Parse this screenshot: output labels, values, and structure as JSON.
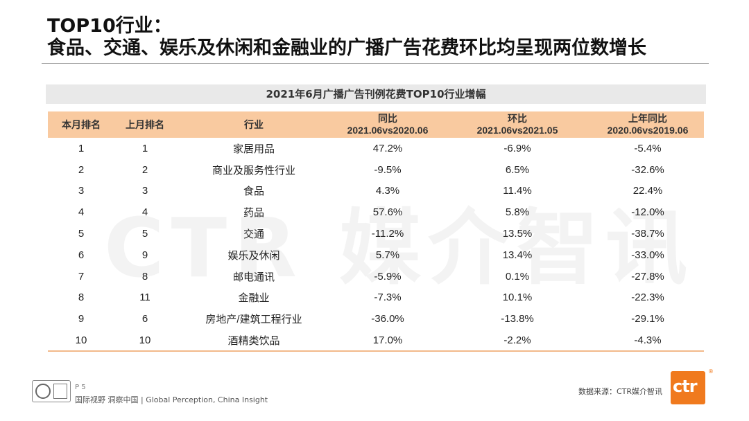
{
  "watermark": "CTR 媒介智讯",
  "title": {
    "line1": "TOP10行业：",
    "line2": "食品、交通、娱乐及休闲和金融业的广播广告花费环比均呈现两位数增长"
  },
  "table": {
    "title": "2021年6月广播广告刊例花费TOP10行业增幅",
    "headers": [
      {
        "line1": "本月排名",
        "line2": ""
      },
      {
        "line1": "上月排名",
        "line2": ""
      },
      {
        "line1": "行业",
        "line2": ""
      },
      {
        "line1": "同比",
        "line2": "2021.06vs2020.06"
      },
      {
        "line1": "环比",
        "line2": "2021.06vs2021.05"
      },
      {
        "line1": "上年同比",
        "line2": "2020.06vs2019.06"
      }
    ],
    "rows": [
      [
        "1",
        "1",
        "家居用品",
        "47.2%",
        "-6.9%",
        "-5.4%"
      ],
      [
        "2",
        "2",
        "商业及服务性行业",
        "-9.5%",
        "6.5%",
        "-32.6%"
      ],
      [
        "3",
        "3",
        "食品",
        "4.3%",
        "11.4%",
        "22.4%"
      ],
      [
        "4",
        "4",
        "药品",
        "57.6%",
        "5.8%",
        "-12.0%"
      ],
      [
        "5",
        "5",
        "交通",
        "-11.2%",
        "13.5%",
        "-38.7%"
      ],
      [
        "6",
        "9",
        "娱乐及休闲",
        "5.7%",
        "13.4%",
        "-33.0%"
      ],
      [
        "7",
        "8",
        "邮电通讯",
        "-5.9%",
        "0.1%",
        "-27.8%"
      ],
      [
        "8",
        "11",
        "金融业",
        "-7.3%",
        "10.1%",
        "-22.3%"
      ],
      [
        "9",
        "6",
        "房地产/建筑工程行业",
        "-36.0%",
        "-13.8%",
        "-29.1%"
      ],
      [
        "10",
        "10",
        "酒精类饮品",
        "17.0%",
        "-2.2%",
        "-4.3%"
      ]
    ]
  },
  "footer": {
    "page": "P 5",
    "slogan": "国际视野  洞察中国 | Global Perception, China Insight",
    "source": "数据来源：CTR媒介智讯",
    "logo_text": "ctr",
    "registered": "®"
  },
  "colors": {
    "header_bg": "#f9caa0",
    "title_bar_bg": "#e9e9e9",
    "brand_orange": "#f07a1e"
  }
}
